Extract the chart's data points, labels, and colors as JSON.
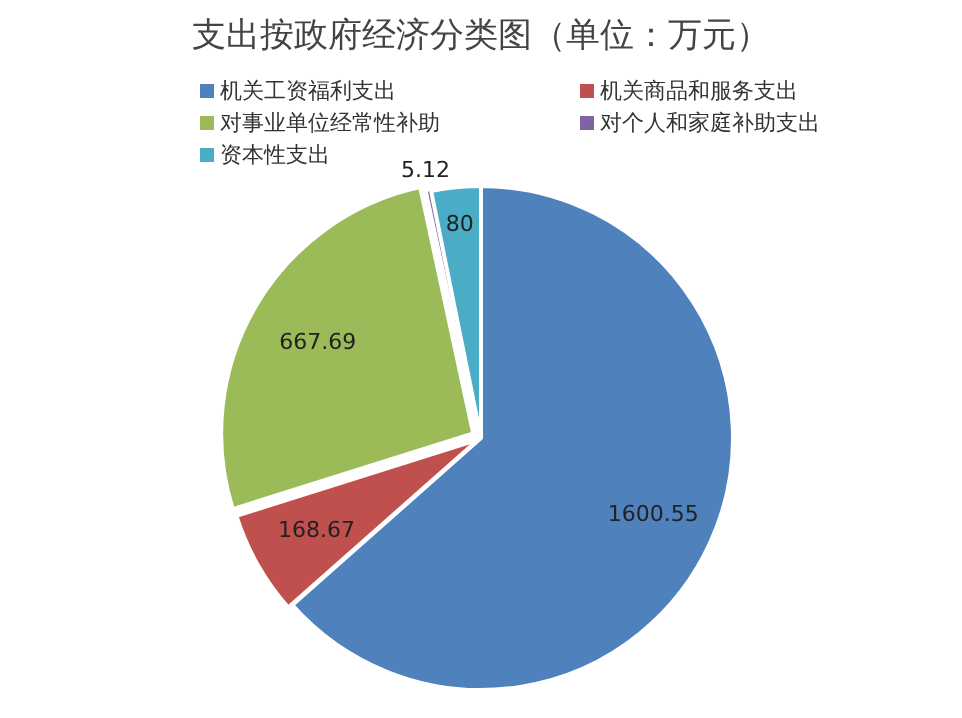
{
  "chart_data": {
    "type": "pie",
    "title": "支出按政府经济分类图（单位：万元）",
    "categories": [
      "机关工资福利支出",
      "机关商品和服务支出",
      "对事业单位经常性补助",
      "对个人和家庭补助支出",
      "资本性支出"
    ],
    "values": [
      1600.55,
      168.67,
      667.69,
      5.12,
      80
    ],
    "colors": [
      "#4f81bd",
      "#c0504d",
      "#9bbb59",
      "#8064a2",
      "#4bacc6"
    ],
    "data_labels": true,
    "legend": "top"
  }
}
